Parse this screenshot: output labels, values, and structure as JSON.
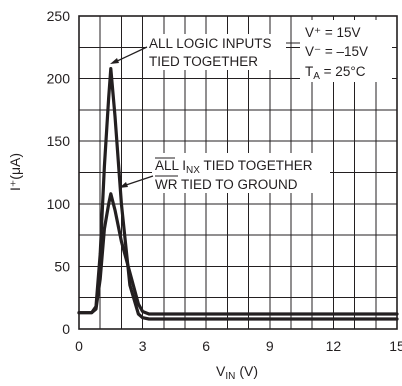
{
  "chart_data": {
    "type": "line",
    "title": "",
    "xlabel": "V",
    "xlabel_sub": "IN",
    "xlabel_unit": "(V)",
    "ylabel": "I⁺(μA)",
    "xlim": [
      0,
      15
    ],
    "ylim": [
      0,
      250
    ],
    "xticks": [
      0,
      3,
      6,
      9,
      12,
      15
    ],
    "yticks": [
      0,
      50,
      100,
      150,
      200,
      250
    ],
    "x_minor_step": 1,
    "y_minor_step": 25,
    "grid": true,
    "series": [
      {
        "x": [
          0,
          0.6,
          0.8,
          1.0,
          1.2,
          1.4,
          1.5,
          1.7,
          2.0,
          2.4,
          2.8,
          3.0,
          3.3,
          15
        ],
        "y": [
          13,
          13,
          18,
          60,
          130,
          185,
          208,
          170,
          100,
          35,
          12,
          9,
          8,
          8
        ]
      },
      {
        "x": [
          0,
          0.6,
          0.8,
          1.0,
          1.2,
          1.4,
          1.5,
          1.7,
          2.0,
          2.4,
          2.8,
          3.0,
          3.3,
          15
        ],
        "y": [
          13,
          13,
          16,
          40,
          80,
          100,
          108,
          95,
          70,
          45,
          20,
          14,
          12,
          12
        ]
      }
    ],
    "annotations": {
      "conditions": {
        "v_plus": "V⁺ = 15V",
        "v_minus": "V⁻ = –15V",
        "ta_main": "T",
        "ta_sub": "A",
        "ta_rest": " = 25°C"
      },
      "logic_line1": "ALL LOGIC INPUTS",
      "logic_line2": "TIED TOGETHER",
      "inx_pre": "ALL I",
      "inx_sub": "NX",
      "inx_post": " TIED TOGETHER",
      "wr_over": "WR",
      "wr_rest": " TIED TO GROUND"
    }
  }
}
